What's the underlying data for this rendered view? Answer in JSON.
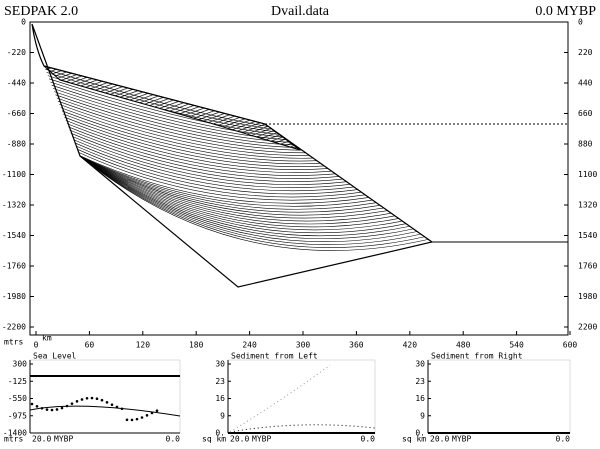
{
  "header": {
    "app": "SEDPAK 2.0",
    "file": "Dvail.data",
    "time": "0.0 MYBP"
  },
  "section": {
    "depth_ticks": [
      0,
      -220,
      -440,
      -660,
      -880,
      -1100,
      -1320,
      -1540,
      -1760,
      -1980,
      -2200
    ],
    "right_ticks": [
      0,
      220,
      440,
      660,
      880,
      1100,
      1320,
      1540,
      1760,
      1980,
      2200
    ],
    "depth_unit": "mtrs",
    "distance_ticks": [
      0,
      60,
      120,
      180,
      240,
      300,
      360,
      420,
      480,
      540,
      600
    ],
    "distance_unit": "km"
  },
  "panels": [
    {
      "title": "Sea Level",
      "yticks": [
        300,
        -125,
        -550,
        -975,
        -1400
      ],
      "y_unit": "mtrs",
      "x_start": "20.0",
      "x_unit": "MYBP",
      "x_end": "0.0"
    },
    {
      "title": "Sediment from Left",
      "yticks": [
        30,
        23,
        16,
        9,
        "0."
      ],
      "y_unit": "sq km",
      "x_start": "20.0",
      "x_unit": "MYBP",
      "x_end": "0.0"
    },
    {
      "title": "Sediment from Right",
      "yticks": [
        30,
        23,
        16,
        9,
        "0."
      ],
      "y_unit": "sq km",
      "x_start": "20.0",
      "x_unit": "MYBP",
      "x_end": "0.0"
    }
  ]
}
